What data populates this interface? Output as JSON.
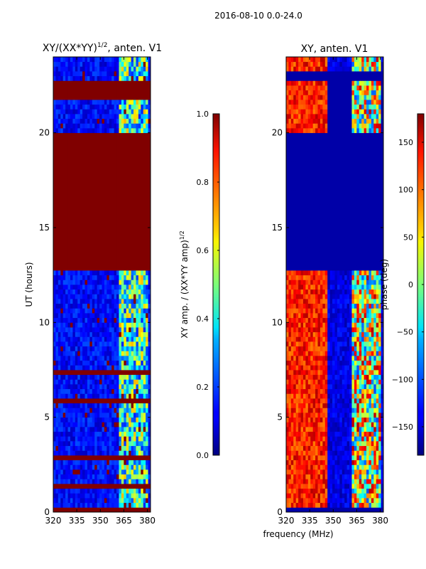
{
  "suptitle": "2016-08-10 0.0-24.0",
  "xlabel_shared": "frequency (MHz)",
  "chart_data": [
    {
      "type": "heatmap",
      "title": "XY/(XX*YY)^1/2, anten. V1",
      "title_main": "XY/(XX*YY)",
      "title_exp": "1/2",
      "title_tail": ", anten. V1",
      "xlabel": "frequency (MHz)",
      "ylabel": "UT (hours)",
      "xlim": [
        320,
        382
      ],
      "ylim": [
        0,
        24
      ],
      "xticks": [
        320,
        335,
        350,
        365,
        380
      ],
      "yticks": [
        0,
        5,
        10,
        15,
        20
      ],
      "colormap": "jet",
      "colorbar": {
        "label": "XY amp. / (XX*YY amp)^1/2",
        "label_main": "XY amp. / (XX*YY amp)",
        "label_exp": "1/2",
        "range": [
          0.0,
          1.0
        ],
        "ticks": [
          "0.0",
          "0.2",
          "0.4",
          "0.6",
          "0.8",
          "1.0"
        ],
        "tick_values": [
          0.0,
          0.2,
          0.4,
          0.6,
          0.8,
          1.0
        ]
      },
      "saturated_bands_hours": [
        [
          0,
          0.3
        ],
        [
          1.2,
          1.5
        ],
        [
          2.8,
          3.0
        ],
        [
          5.8,
          6.0
        ],
        [
          7.2,
          7.5
        ],
        [
          9.9,
          10.1
        ],
        [
          12.8,
          19.9
        ],
        [
          21.8,
          22.8
        ]
      ],
      "feature_band_mhz": [
        362,
        380
      ]
    },
    {
      "type": "heatmap",
      "title": "XY, anten. V1",
      "xlabel": "frequency (MHz)",
      "ylabel": "",
      "xlim": [
        320,
        382
      ],
      "ylim": [
        0,
        24
      ],
      "xticks": [
        320,
        335,
        350,
        365,
        380
      ],
      "yticks": [
        0,
        5,
        10,
        15,
        20
      ],
      "colormap": "jet",
      "colorbar": {
        "label": "phase (deg)",
        "range": [
          -180,
          180
        ],
        "ticks": [
          "−150",
          "−100",
          "−50",
          "0",
          "50",
          "100",
          "150"
        ],
        "tick_values": [
          -150,
          -100,
          -50,
          0,
          50,
          100,
          150
        ]
      },
      "empty_bands_hours": [
        [
          0,
          0.3
        ],
        [
          12.8,
          19.9
        ],
        [
          22.8,
          23.2
        ]
      ],
      "feature_band_mhz": [
        [
          320,
          347
        ],
        [
          362,
          380
        ]
      ]
    }
  ]
}
